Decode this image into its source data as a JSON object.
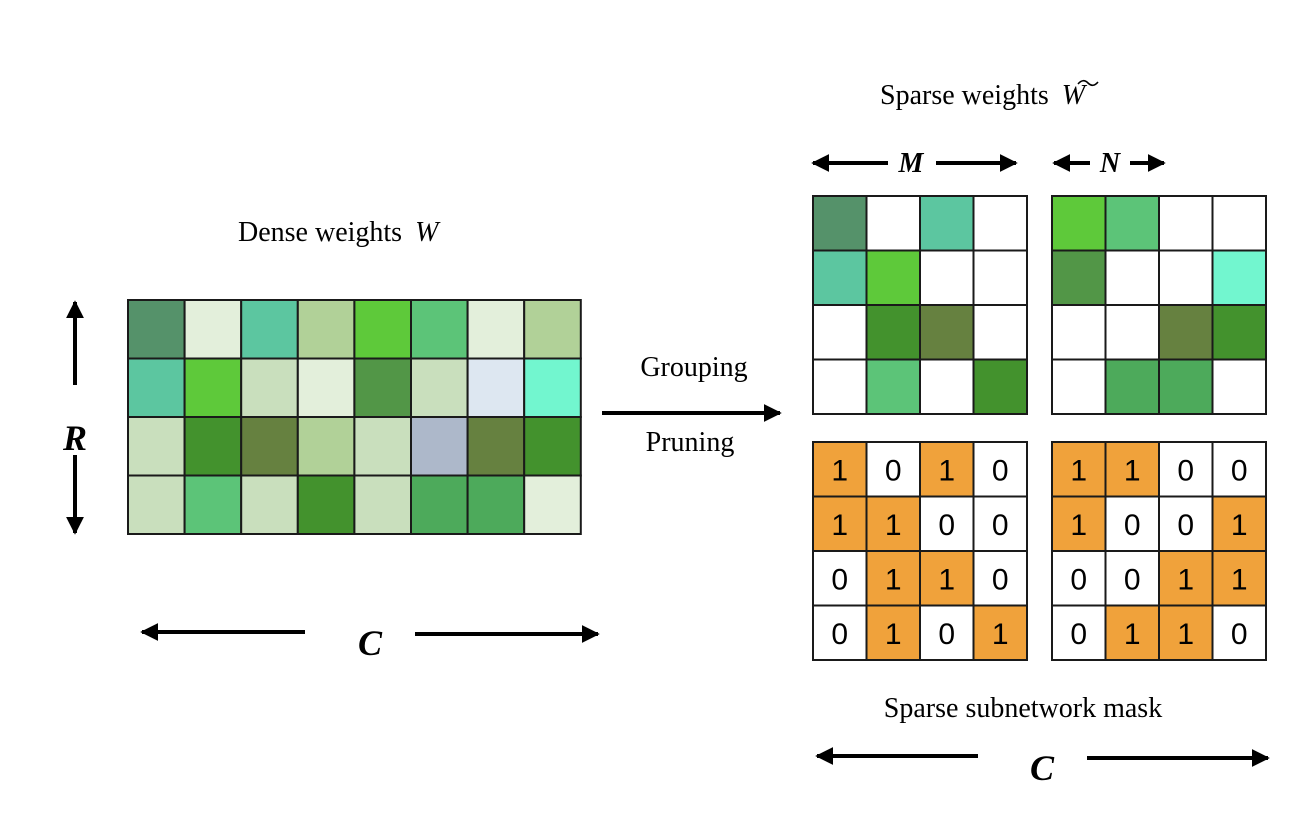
{
  "dense": {
    "title": "Dense weights",
    "symbol": "W",
    "row_label": "R",
    "col_label": "C",
    "cells": [
      [
        "#55926a",
        "#e3efdb",
        "#5cc6a0",
        "#b1d198",
        "#5ec93a",
        "#5cc478",
        "#e3efdb",
        "#b1d198"
      ],
      [
        "#5cc6a0",
        "#5ec93a",
        "#c9dfbd",
        "#e3efdb",
        "#529647",
        "#c9dfbd",
        "#dde7f1",
        "#72f6cf"
      ],
      [
        "#c9dfbd",
        "#43922d",
        "#668140",
        "#b1d198",
        "#c9dfbd",
        "#adb8ca",
        "#668140",
        "#43922d"
      ],
      [
        "#c9dfbd",
        "#5cc478",
        "#c9dfbd",
        "#43922d",
        "#c9dfbd",
        "#4daa5b",
        "#4daa5b",
        "#e3efdb"
      ]
    ]
  },
  "operation": {
    "top": "Grouping",
    "bottom": "Pruning"
  },
  "sparse": {
    "title": "Sparse weights",
    "symbol": "W",
    "m_label": "M",
    "n_label": "N",
    "blocks": [
      [
        [
          "#55926a",
          "#ffffff",
          "#5cc6a0",
          "#ffffff"
        ],
        [
          "#5cc6a0",
          "#5ec93a",
          "#ffffff",
          "#ffffff"
        ],
        [
          "#ffffff",
          "#43922d",
          "#668140",
          "#ffffff"
        ],
        [
          "#ffffff",
          "#5cc478",
          "#ffffff",
          "#43922d"
        ]
      ],
      [
        [
          "#5ec93a",
          "#5cc478",
          "#ffffff",
          "#ffffff"
        ],
        [
          "#529647",
          "#ffffff",
          "#ffffff",
          "#72f6cf"
        ],
        [
          "#ffffff",
          "#ffffff",
          "#668140",
          "#43922d"
        ],
        [
          "#ffffff",
          "#4daa5b",
          "#4daa5b",
          "#ffffff"
        ]
      ]
    ]
  },
  "mask": {
    "title": "Sparse subnetwork mask",
    "col_label": "C",
    "on_color": "#f0a23b",
    "blocks": [
      [
        [
          "1",
          "0",
          "1",
          "0"
        ],
        [
          "1",
          "1",
          "0",
          "0"
        ],
        [
          "0",
          "1",
          "1",
          "0"
        ],
        [
          "0",
          "1",
          "0",
          "1"
        ]
      ],
      [
        [
          "1",
          "1",
          "0",
          "0"
        ],
        [
          "1",
          "0",
          "0",
          "1"
        ],
        [
          "0",
          "0",
          "1",
          "1"
        ],
        [
          "0",
          "1",
          "1",
          "0"
        ]
      ]
    ]
  }
}
